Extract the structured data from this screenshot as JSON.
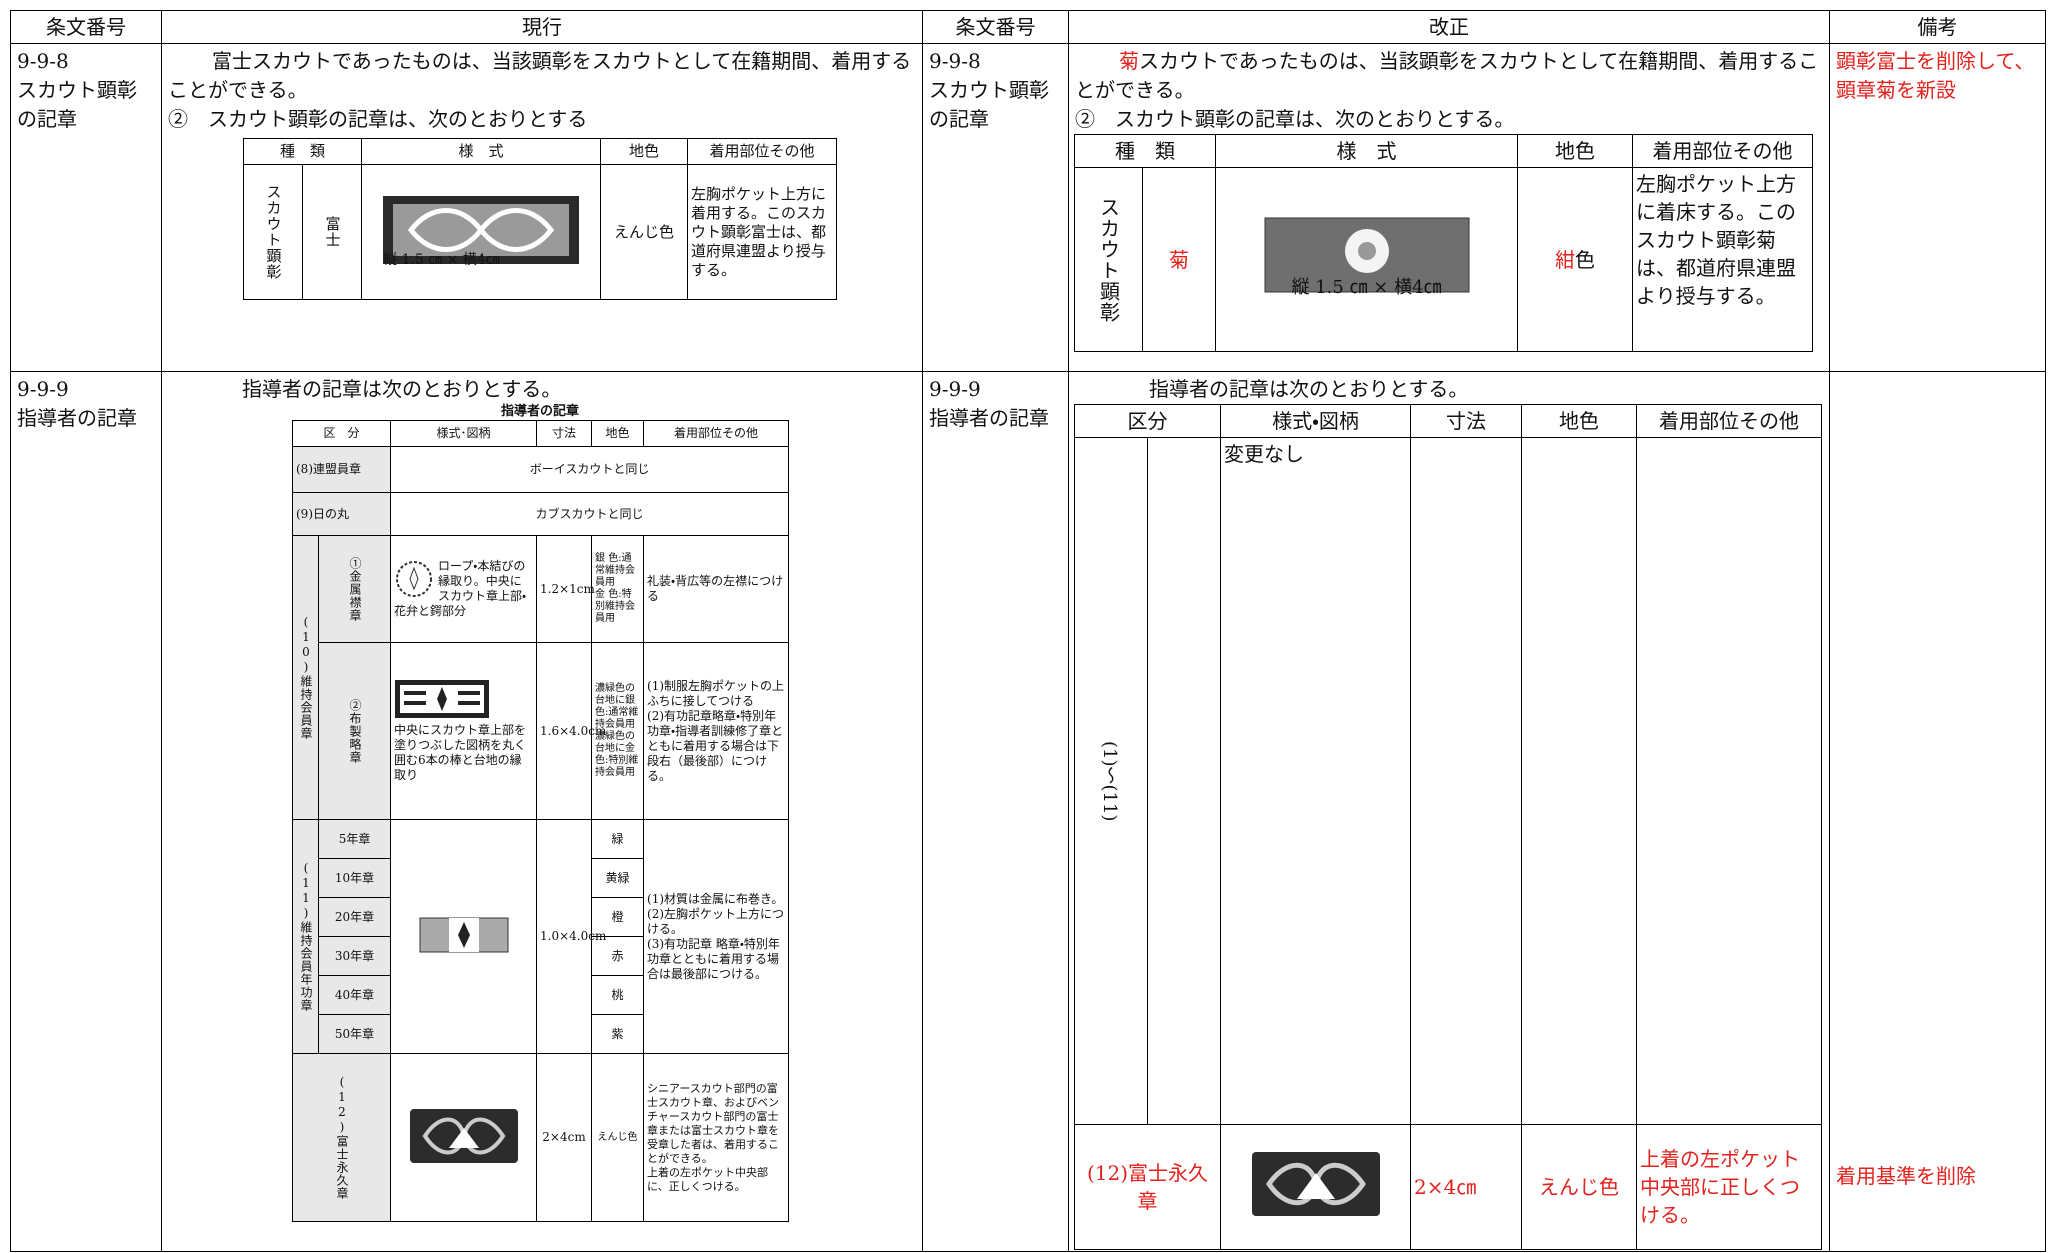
{
  "header": [
    "条文番号",
    "現行",
    "条文番号",
    "改正",
    "備考"
  ],
  "sections": [
    {
      "current": {
        "article": [
          "9-9-8",
          "スカウト顕彰",
          "の記章"
        ],
        "text": "富士スカウトであったものは、当該顕彰をスカウトとして在籍期間、着用することができる。",
        "subtext": "②　スカウト顕彰の記章は、次のとおりとする",
        "table": {
          "headers": [
            "種　類",
            "様　式",
            "地色",
            "着用部位その他"
          ],
          "group": "スカウト顕彰",
          "kind": "富士",
          "size": "縦 1.5 ㎝ × 横4㎝",
          "color": "えんじ色",
          "usage": "左胸ポケット上方に着用する。このスカウト顕彰富士は、都道府県連盟より授与する。"
        }
      },
      "revised": {
        "article": [
          "9-9-8",
          "スカウト顕彰",
          "の記章"
        ],
        "highlight": "菊",
        "text": "スカウトであったものは、当該顕彰をスカウトとして在籍期間、着用することができる。",
        "subtext": "②　スカウト顕彰の記章は、次のとおりとする。",
        "table": {
          "headers": [
            "種　類",
            "様　式",
            "地色",
            "着用部位その他"
          ],
          "group": "スカウト顕彰",
          "kind": "菊",
          "size": "縦 1.5 ㎝ × 横4㎝",
          "color_highlight": "紺",
          "color_rest": "色",
          "usage": "左胸ポケット上方に着床する。このスカウト顕彰菊は、都道府県連盟より授与する。"
        }
      },
      "remark": "顕彰富士を削除して、顕章菊を新設"
    },
    {
      "current": {
        "article": [
          "9-9-9",
          "指導者の記章"
        ],
        "text": "指導者の記章は次のとおりとする。",
        "table": {
          "title": "指導者の記章",
          "headers": [
            "区　分",
            "様式･図柄",
            "寸法",
            "地色",
            "着用部位その他"
          ],
          "rows": [
            {
              "label": "(8)連盟員章",
              "same": "ボーイスカウトと同じ"
            },
            {
              "label": "(9)日の丸",
              "same": "カブスカウトと同じ"
            }
          ],
          "member_badge": {
            "group": "(10)維持会員章",
            "items": [
              {
                "label": "①金属襟章",
                "design": "ロープ・本結びの縁取り。中央にスカウト章上部・花弁と鍔部分",
                "size": "1.2×1cm",
                "color": [
                  "銀 色:通常維持会員用",
                  "金 色:特別維持会員用"
                ],
                "usage": [
                  "礼装・背広等の左襟につける"
                ]
              },
              {
                "label": "②布製略章",
                "design": "中央にスカウト章上部を塗りつぶした図柄を丸く囲む6本の棒と台地の縁取り",
                "size": "1.6×4.0cm",
                "color": [
                  "濃緑色の台地に銀色:通常維持会員用",
                  "濃緑色の台地に金色:特別維持会員用"
                ],
                "usage": [
                  "(1)制服左胸ポケットの上ふちに接してつける",
                  "(2)有功記章略章・特別年功章・指導者訓練修了章とともに着用する場合は下段右（最後部）につける。"
                ]
              }
            ]
          },
          "years": {
            "group": "(11)維持会員年功章",
            "labels": [
              "5年章",
              "10年章",
              "20年章",
              "30年章",
              "40年章",
              "50年章"
            ],
            "colors": [
              "緑",
              "黄緑",
              "橙",
              "赤",
              "桃",
              "紫"
            ],
            "size": "1.0×4.0cm",
            "usage": [
              "(1)材質は金属に布巻き。",
              "(2)左胸ポケット上方につける。",
              "(3)有功記章 略章・特別年功章とともに着用する場合は最後部につける。"
            ]
          },
          "eternal": {
            "label": "(12)富士永久章",
            "size": "2×4cm",
            "color": "えんじ色",
            "usage": [
              "シニアースカウト部門の富士スカウト章、およびベンチャースカウト部門の富士章または富士スカウト章を受章した者は、着用することができる。",
              "上着の左ポケット中央部に、正しくつける。"
            ]
          }
        }
      },
      "revised": {
        "article": [
          "9-9-9",
          "指導者の記章"
        ],
        "text": "指導者の記章は次のとおりとする。",
        "table": {
          "headers": [
            "区分",
            "様式・図柄",
            "寸法",
            "地色",
            "着用部位その他"
          ],
          "range": "(1)〜(11)",
          "unchanged": "変更なし",
          "eternal": {
            "label": "(12)富士永久章",
            "size": "2×4㎝",
            "color": "えんじ色",
            "usage": "上着の左ポケット中央部に正しくつける。"
          }
        }
      },
      "remark": "着用基準を削除"
    }
  ]
}
